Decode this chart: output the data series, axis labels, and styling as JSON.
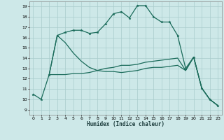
{
  "xlabel": "Humidex (Indice chaleur)",
  "xlim": [
    -0.5,
    23.5
  ],
  "ylim": [
    8.5,
    19.5
  ],
  "yticks": [
    9,
    10,
    11,
    12,
    13,
    14,
    15,
    16,
    17,
    18,
    19
  ],
  "xticks": [
    0,
    1,
    2,
    3,
    4,
    5,
    6,
    7,
    8,
    9,
    10,
    11,
    12,
    13,
    14,
    15,
    16,
    17,
    18,
    19,
    20,
    21,
    22,
    23
  ],
  "background_color": "#cde8e8",
  "grid_color": "#a8cccc",
  "line_color": "#1a6b5a",
  "line1": {
    "x": [
      0,
      1,
      2,
      3,
      4,
      5,
      6,
      7,
      8,
      9,
      10,
      11,
      12,
      13,
      14,
      15,
      16,
      17,
      18,
      19,
      20,
      21,
      22,
      23
    ],
    "y": [
      10.5,
      10.0,
      12.4,
      16.2,
      16.5,
      16.7,
      16.7,
      16.4,
      16.5,
      17.3,
      18.3,
      18.5,
      17.9,
      19.1,
      19.1,
      18.0,
      17.5,
      17.5,
      16.2,
      13.0,
      14.1,
      11.1,
      10.0,
      9.4
    ]
  },
  "line2": {
    "x": [
      2,
      3,
      4,
      5,
      6,
      7,
      8,
      9,
      10,
      11,
      12,
      13,
      14,
      15,
      16,
      17,
      18,
      19,
      20,
      21,
      22,
      23
    ],
    "y": [
      12.4,
      12.4,
      12.4,
      12.5,
      12.5,
      12.6,
      12.8,
      13.0,
      13.1,
      13.3,
      13.3,
      13.4,
      13.6,
      13.7,
      13.8,
      13.9,
      14.0,
      12.8,
      14.1,
      11.1,
      10.0,
      9.4
    ]
  },
  "line3": {
    "x": [
      2,
      3,
      4,
      5,
      6,
      7,
      8,
      9,
      10,
      11,
      12,
      13,
      14,
      15,
      16,
      17,
      18,
      19,
      20,
      21,
      22,
      23
    ],
    "y": [
      12.4,
      16.2,
      15.5,
      14.5,
      13.7,
      13.1,
      12.8,
      12.7,
      12.7,
      12.6,
      12.7,
      12.8,
      13.0,
      13.1,
      13.1,
      13.2,
      13.3,
      12.8,
      14.1,
      11.1,
      10.0,
      9.4
    ]
  }
}
